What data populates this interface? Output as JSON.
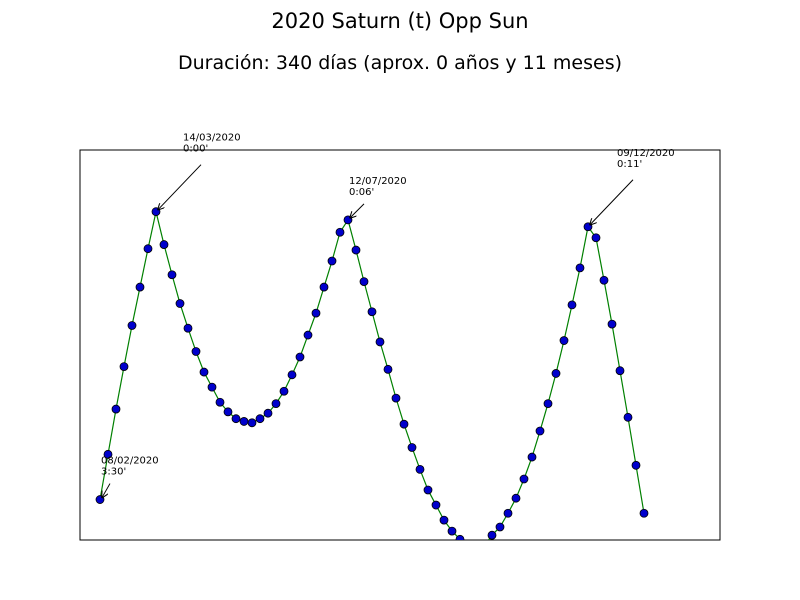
{
  "chart_data": {
    "type": "line",
    "title": "2020 Saturn (t) Opp Sun",
    "subtitle": "Duración: 340 días (aprox. 0 años y 11 meses)",
    "x": [
      0,
      5,
      10,
      15,
      20,
      25,
      30,
      35,
      40,
      45,
      50,
      55,
      60,
      65,
      70,
      75,
      80,
      85,
      90,
      95,
      100,
      105,
      110,
      115,
      120,
      125,
      130,
      135,
      140,
      145,
      150,
      155,
      160,
      165,
      170,
      175,
      180,
      185,
      190,
      195,
      200,
      205,
      210,
      215,
      220,
      225,
      230,
      235,
      240,
      245,
      250,
      255,
      260,
      265,
      270,
      275,
      280,
      285,
      290,
      295,
      300,
      305,
      310,
      315,
      320,
      325,
      330,
      335,
      340
    ],
    "series": [
      {
        "color": "#008000",
        "marker_color": "#0000cc",
        "values": [
          210,
          177,
          144,
          113,
          83,
          55,
          27,
          0,
          24,
          46,
          67,
          85,
          102,
          117,
          128,
          139,
          146,
          151,
          153,
          154,
          151,
          147,
          140,
          131,
          119,
          106,
          90,
          74,
          55,
          36,
          15,
          6,
          28,
          51,
          73,
          95,
          115,
          136,
          155,
          172,
          188,
          203,
          214,
          225,
          233,
          239,
          243,
          245,
          244,
          236,
          230,
          220,
          209,
          195,
          179,
          160,
          140,
          118,
          94,
          68,
          41,
          11,
          19,
          50,
          82,
          116,
          150,
          185,
          220
        ]
      }
    ],
    "xlim": [
      -12.5,
      387.5
    ],
    "ylim": [
      239.5,
      -45
    ],
    "annotations": [
      {
        "x": 0,
        "y": 210,
        "text": [
          "08/02/2020",
          "3:30'"
        ]
      },
      {
        "x": 35,
        "y": 0,
        "text": [
          "14/03/2020",
          "0:00'"
        ]
      },
      {
        "x": 155,
        "y": 6,
        "text": [
          "12/07/2020",
          "0:06'"
        ]
      },
      {
        "x": 305,
        "y": 11,
        "text": [
          "09/12/2020",
          "0:11'"
        ]
      }
    ]
  }
}
